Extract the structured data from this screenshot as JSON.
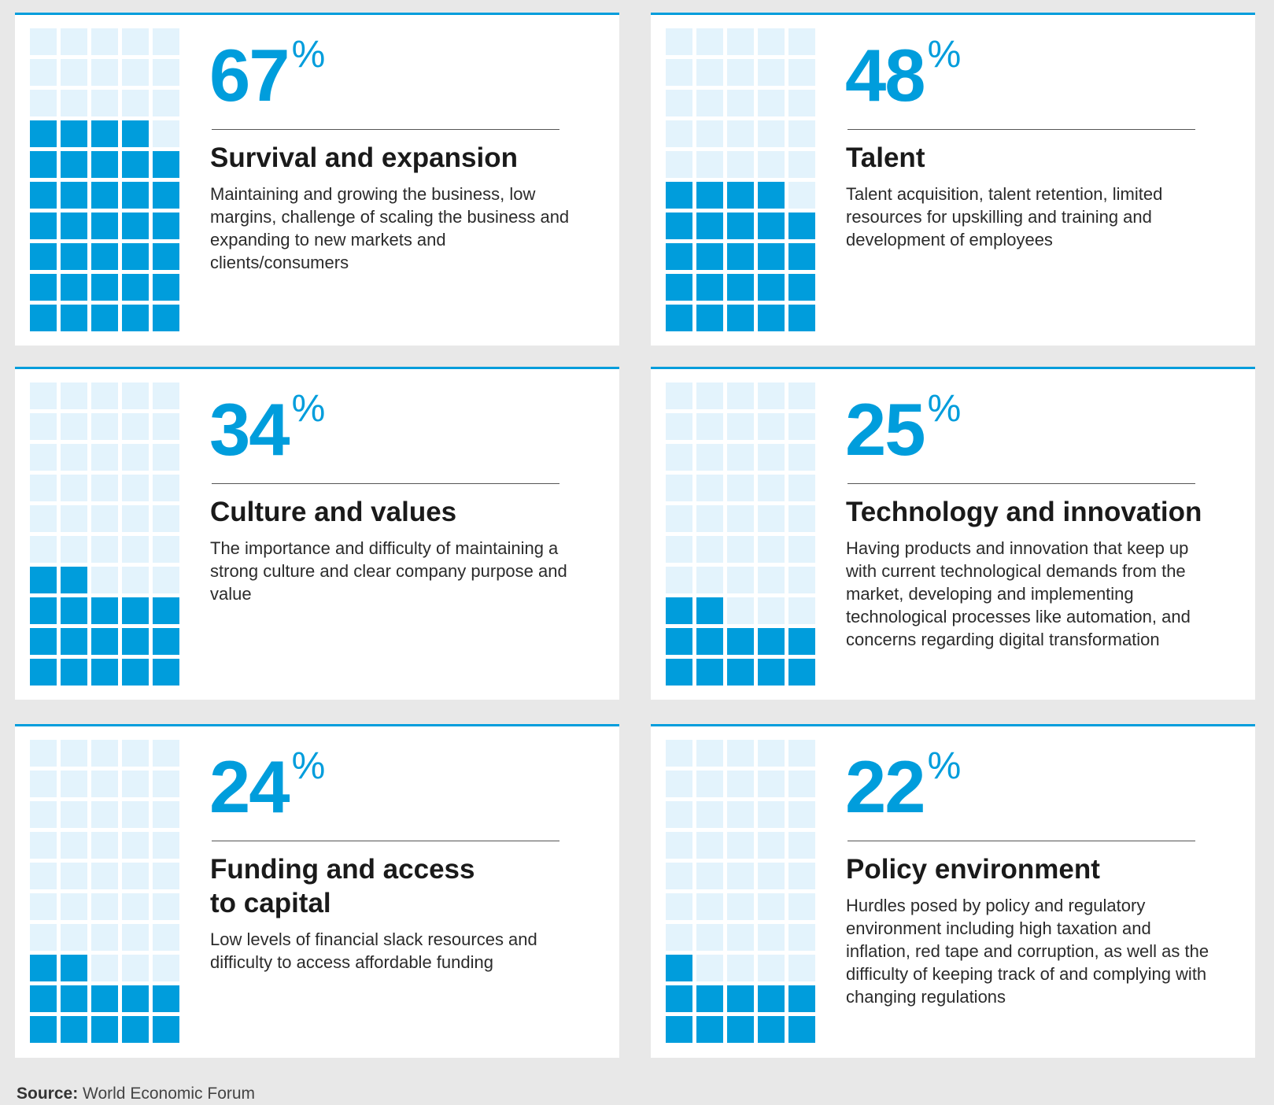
{
  "chart_data": {
    "type": "waffle",
    "unit_cells": 50,
    "grid": "5 columns x 10 rows",
    "colors": {
      "filled": "#009ddc",
      "empty": "#e3f3fc",
      "accent": "#009ddc"
    },
    "items": [
      {
        "value": 67,
        "unit": "%",
        "title": "Survival and expansion",
        "description": "Maintaining and growing the business, low margins, challenge of scaling the business and expanding to new markets and clients/consumers",
        "cells_filled": 34
      },
      {
        "value": 48,
        "unit": "%",
        "title": "Talent",
        "description": "Talent acquisition, talent retention, limited resources for upskilling and training and development of employees",
        "cells_filled": 24
      },
      {
        "value": 34,
        "unit": "%",
        "title": "Culture and values",
        "description": "The importance and difficulty of maintaining a strong culture and clear company purpose and value",
        "cells_filled": 17
      },
      {
        "value": 25,
        "unit": "%",
        "title": "Technology and innovation",
        "description": "Having products and innovation that keep up with current technological demands from the market, developing and implementing technological processes like automation, and concerns regarding digital transformation",
        "cells_filled": 12
      },
      {
        "value": 24,
        "unit": "%",
        "title": "Funding and access\nto capital",
        "description": "Low levels of financial slack resources and difficulty to access affordable funding",
        "cells_filled": 12
      },
      {
        "value": 22,
        "unit": "%",
        "title": "Policy environment",
        "description": "Hurdles posed by policy and regulatory environment including high taxation and inflation, red tape and corruption, as well as the difficulty of keeping track of and complying with changing regulations",
        "cells_filled": 11
      }
    ]
  },
  "source": {
    "label": "Source:",
    "text": "World Economic Forum"
  }
}
